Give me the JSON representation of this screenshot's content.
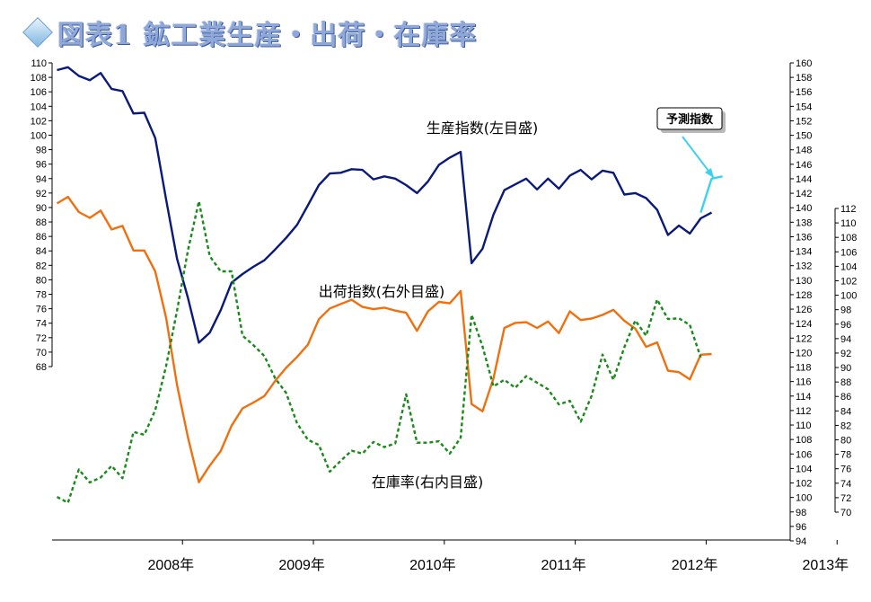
{
  "title": "図表1  鉱工業生産・出荷・在庫率",
  "chart_data": {
    "type": "line",
    "title": "図表1  鉱工業生産・出荷・在庫率",
    "x_labels": [
      "2008年",
      "2009年",
      "2010年",
      "2011年",
      "2012年",
      "2013年"
    ],
    "x_range": [
      "2008-01",
      "2013-03"
    ],
    "axes": {
      "left": {
        "min": 68,
        "max": 110,
        "step": 2
      },
      "right_outer": {
        "min": 94,
        "max": 160,
        "step": 2
      },
      "right_inner": {
        "min": 70,
        "max": 112,
        "step": 2
      }
    },
    "grid": false,
    "series": [
      {
        "name": "生産指数(左目盛)",
        "axis": "left",
        "color": "#0a1a7a",
        "style": "solid",
        "start": "2008-01",
        "values": [
          109.0,
          109.4,
          108.2,
          107.6,
          108.6,
          106.4,
          106.1,
          103.0,
          103.1,
          99.6,
          91.1,
          82.9,
          77.5,
          71.3,
          72.7,
          75.8,
          79.6,
          80.8,
          81.8,
          82.7,
          84.2,
          85.8,
          87.6,
          90.3,
          93.1,
          94.7,
          94.8,
          95.3,
          95.2,
          93.9,
          94.3,
          94.0,
          93.1,
          92.0,
          93.6,
          95.9,
          96.9,
          97.7,
          82.3,
          84.3,
          89.0,
          92.4,
          93.2,
          94.0,
          92.5,
          94.0,
          92.6,
          94.4,
          95.2,
          93.9,
          95.1,
          94.8,
          91.8,
          92.0,
          91.3,
          89.7,
          86.2,
          87.5,
          86.4,
          88.5,
          89.3
        ]
      },
      {
        "name": "予測指数",
        "axis": "left",
        "color": "#3fd0f0",
        "style": "solid",
        "start": "2012-12",
        "values": [
          89.3,
          94.0,
          94.3
        ]
      },
      {
        "name": "出荷指数(右外目盛)",
        "axis": "right_outer",
        "color": "#f07010",
        "style": "solid",
        "start": "2008-01",
        "values": [
          140.6,
          141.5,
          139.4,
          138.6,
          139.6,
          137.0,
          137.5,
          134.1,
          134.1,
          131.2,
          124.8,
          115.5,
          108.3,
          102.1,
          104.4,
          106.4,
          109.9,
          112.3,
          113.1,
          114.0,
          116.1,
          117.9,
          119.4,
          121.1,
          124.6,
          126.1,
          126.7,
          127.3,
          126.3,
          126.0,
          126.2,
          125.8,
          125.5,
          123.0,
          125.7,
          127.0,
          126.8,
          128.5,
          112.9,
          111.9,
          116.4,
          123.4,
          124.1,
          124.2,
          123.4,
          124.3,
          122.7,
          125.7,
          124.5,
          124.7,
          125.2,
          125.9,
          124.4,
          123.3,
          120.8,
          121.4,
          117.5,
          117.3,
          116.3,
          119.7,
          119.8
        ]
      },
      {
        "name": "在庫率(右内目盛)",
        "axis": "right_inner",
        "color": "#1a8a1a",
        "style": "dashed",
        "start": "2008-01",
        "values": [
          72.1,
          71.3,
          75.9,
          74.1,
          74.8,
          76.4,
          74.7,
          81.1,
          80.7,
          84.1,
          90.2,
          97.9,
          106.2,
          113.0,
          105.4,
          103.3,
          103.3,
          94.4,
          93.1,
          91.6,
          88.5,
          86.5,
          82.3,
          80.0,
          79.3,
          75.6,
          77.1,
          78.5,
          78.1,
          79.7,
          79.0,
          79.5,
          86.3,
          79.6,
          79.6,
          79.8,
          78.1,
          80.3,
          97.3,
          92.9,
          87.4,
          88.3,
          87.2,
          88.8,
          87.9,
          87.0,
          84.9,
          85.4,
          82.5,
          86.1,
          91.8,
          88.3,
          92.8,
          96.5,
          94.4,
          99.4,
          96.7,
          96.8,
          95.9,
          91.4
        ]
      }
    ],
    "annotations": [
      {
        "text": "生産指数(左目盛)",
        "target": "生産指数(左目盛)"
      },
      {
        "text": "出荷指数(右外目盛)",
        "target": "出荷指数(右外目盛)"
      },
      {
        "text": "在庫率(右内目盛)",
        "target": "在庫率(右内目盛)"
      },
      {
        "text": "予測指数",
        "target": "予測指数",
        "style": "callout-box"
      }
    ]
  }
}
